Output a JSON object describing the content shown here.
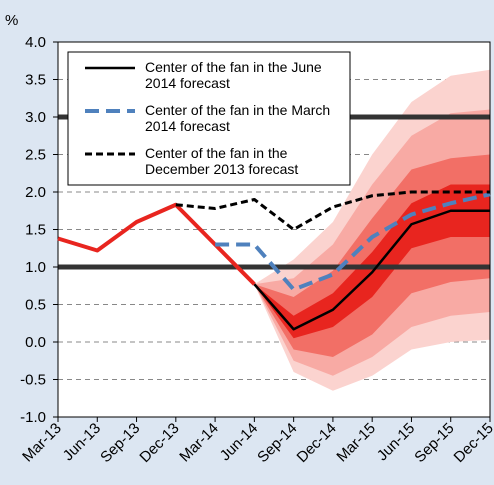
{
  "chart_data": {
    "type": "line",
    "y_label": "%",
    "categories": [
      "Mar-13",
      "Jun-13",
      "Sep-13",
      "Dec-13",
      "Mar-14",
      "Jun-14",
      "Sep-14",
      "Dec-14",
      "Mar-15",
      "Jun-15",
      "Sep-15",
      "Dec-15"
    ],
    "ylim": [
      -1.0,
      4.0
    ],
    "yticks": [
      {
        "value": -1.0,
        "label": "-1.0"
      },
      {
        "value": -0.5,
        "label": "-0.5"
      },
      {
        "value": 0,
        "label": "0.0"
      },
      {
        "value": 0.5,
        "label": "0.5"
      },
      {
        "value": 1,
        "label": "1.0"
      },
      {
        "value": 1.5,
        "label": "1.5"
      },
      {
        "value": 2,
        "label": "2.0"
      },
      {
        "value": 2.5,
        "label": "2.5"
      },
      {
        "value": 3,
        "label": "3.0"
      },
      {
        "value": 3.5,
        "label": "3.5"
      },
      {
        "value": 4,
        "label": "4.0"
      }
    ],
    "reference_lines": [
      1,
      3
    ],
    "actual": {
      "color": "#e8251f",
      "values": [
        1.38,
        1.22,
        1.6,
        1.83,
        1.3,
        0.77,
        null,
        null,
        null,
        null,
        null,
        null
      ]
    },
    "fan_bands": [
      {
        "color": "#fbd3cf",
        "upper": [
          null,
          null,
          null,
          null,
          null,
          0.77,
          1.1,
          1.6,
          2.5,
          3.2,
          3.55,
          3.63
        ],
        "lower": [
          null,
          null,
          null,
          null,
          null,
          0.77,
          -0.4,
          -0.65,
          -0.45,
          -0.1,
          0.0,
          0.03
        ]
      },
      {
        "color": "#f8aaa4",
        "upper": [
          null,
          null,
          null,
          null,
          null,
          0.77,
          0.85,
          1.3,
          2.1,
          2.75,
          3.05,
          3.1
        ],
        "lower": [
          null,
          null,
          null,
          null,
          null,
          0.77,
          -0.25,
          -0.45,
          -0.2,
          0.2,
          0.35,
          0.4
        ]
      },
      {
        "color": "#f26f66",
        "upper": [
          null,
          null,
          null,
          null,
          null,
          0.77,
          0.6,
          0.95,
          1.65,
          2.3,
          2.45,
          2.5
        ],
        "lower": [
          null,
          null,
          null,
          null,
          null,
          0.77,
          -0.1,
          -0.2,
          0.1,
          0.65,
          0.8,
          0.85
        ]
      },
      {
        "color": "#e8251f",
        "upper": [
          null,
          null,
          null,
          null,
          null,
          0.77,
          0.35,
          0.65,
          1.2,
          1.85,
          2.1,
          2.1
        ],
        "lower": [
          null,
          null,
          null,
          null,
          null,
          0.77,
          0.05,
          0.2,
          0.6,
          1.25,
          1.4,
          1.4
        ]
      }
    ],
    "series": [
      {
        "name": "Center of the fan in the June 2014 forecast",
        "color": "#000000",
        "style": "solid",
        "values": [
          null,
          null,
          null,
          null,
          null,
          0.77,
          0.17,
          0.43,
          0.93,
          1.57,
          1.75,
          1.75
        ]
      },
      {
        "name": "Center of the fan in the March 2014 forecast",
        "color": "#4f81bd",
        "style": "long-dash",
        "values": [
          null,
          null,
          null,
          null,
          1.3,
          1.3,
          0.7,
          0.9,
          1.4,
          1.7,
          1.85,
          1.97
        ]
      },
      {
        "name": "Center of the fan in the December 2013 forecast",
        "color": "#000000",
        "style": "short-dash",
        "values": [
          null,
          null,
          null,
          1.83,
          1.78,
          1.9,
          1.5,
          1.8,
          1.95,
          2.0,
          2.0,
          2.0
        ]
      }
    ]
  }
}
